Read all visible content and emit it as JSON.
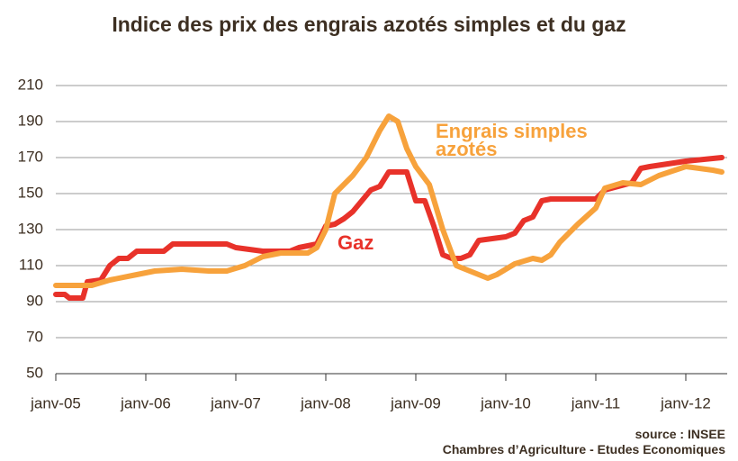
{
  "chart_data": {
    "type": "line",
    "title": "Indice des prix des engrais azotés simples et du gaz",
    "source": [
      "source : INSEE",
      "Chambres d’Agriculture - Etudes Economiques"
    ],
    "xlim": [
      2005,
      2012.46
    ],
    "xticks": [
      {
        "value": 2005,
        "label": "janv-05"
      },
      {
        "value": 2006,
        "label": "janv-06"
      },
      {
        "value": 2007,
        "label": "janv-07"
      },
      {
        "value": 2008,
        "label": "janv-08"
      },
      {
        "value": 2009,
        "label": "janv-09"
      },
      {
        "value": 2010,
        "label": "janv-10"
      },
      {
        "value": 2011,
        "label": "janv-11"
      },
      {
        "value": 2012,
        "label": "janv-12"
      }
    ],
    "ylim": [
      50,
      210
    ],
    "yticks": [
      50,
      70,
      90,
      110,
      130,
      150,
      170,
      190,
      210
    ],
    "grid": true,
    "series": [
      {
        "name": "Gaz",
        "color": "#e8322a",
        "x": [
          2005.0,
          2005.1,
          2005.15,
          2005.3,
          2005.35,
          2005.5,
          2005.6,
          2005.7,
          2005.8,
          2005.9,
          2006.2,
          2006.3,
          2006.9,
          2007.0,
          2007.3,
          2007.6,
          2007.7,
          2007.9,
          2008.0,
          2008.1,
          2008.2,
          2008.3,
          2008.4,
          2008.5,
          2008.6,
          2008.7,
          2008.9,
          2009.0,
          2009.1,
          2009.2,
          2009.3,
          2009.4,
          2009.5,
          2009.6,
          2009.7,
          2010.0,
          2010.1,
          2010.2,
          2010.3,
          2010.4,
          2010.5,
          2011.0,
          2011.1,
          2011.4,
          2011.5,
          2011.6,
          2012.0,
          2012.4
        ],
        "values": [
          94,
          94,
          92,
          92,
          101,
          102,
          110,
          114,
          114,
          118,
          118,
          122,
          122,
          120,
          118,
          118,
          120,
          122,
          132,
          133,
          136,
          140,
          146,
          152,
          154,
          162,
          162,
          146,
          146,
          132,
          116,
          114,
          114,
          116,
          124,
          126,
          128,
          135,
          137,
          146,
          147,
          147,
          152,
          156,
          164,
          165,
          168,
          170
        ]
      },
      {
        "name": "Engrais simples azotés",
        "color": "#f7a23c",
        "x": [
          2005.0,
          2005.4,
          2005.6,
          2005.9,
          2006.1,
          2006.4,
          2006.7,
          2006.9,
          2007.1,
          2007.3,
          2007.5,
          2007.8,
          2007.9,
          2008.0,
          2008.1,
          2008.3,
          2008.45,
          2008.6,
          2008.7,
          2008.8,
          2008.9,
          2009.0,
          2009.15,
          2009.3,
          2009.45,
          2009.6,
          2009.8,
          2009.9,
          2010.1,
          2010.3,
          2010.4,
          2010.5,
          2010.6,
          2010.8,
          2011.0,
          2011.1,
          2011.3,
          2011.5,
          2011.7,
          2012.0,
          2012.3,
          2012.4
        ],
        "values": [
          99,
          99,
          102,
          105,
          107,
          108,
          107,
          107,
          110,
          115,
          117,
          117,
          120,
          130,
          150,
          160,
          170,
          185,
          193,
          190,
          175,
          165,
          155,
          130,
          110,
          107,
          103,
          105,
          111,
          114,
          113,
          116,
          123,
          133,
          142,
          153,
          156,
          155,
          160,
          165,
          163,
          162
        ]
      }
    ]
  }
}
